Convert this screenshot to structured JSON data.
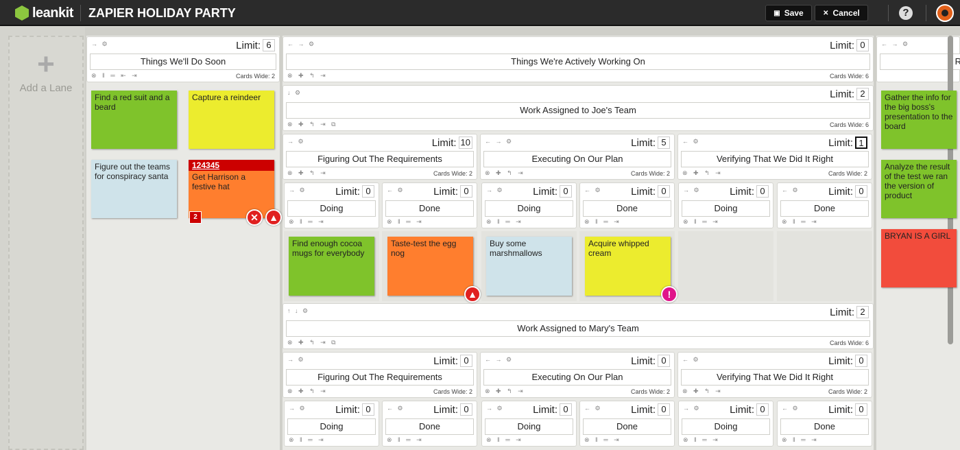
{
  "topbar": {
    "brand": "leankit",
    "board_title": "ZAPIER HOLIDAY PARTY",
    "save_label": "Save",
    "cancel_label": "Cancel",
    "help": "?"
  },
  "sidebar": {
    "add_lane_plus": "+",
    "add_lane_label": "Add a Lane"
  },
  "lanes": {
    "soon": {
      "title": "Things We'll Do Soon",
      "limit_label": "Limit:",
      "limit": "6",
      "cards_wide": "Cards Wide: 2"
    },
    "active": {
      "title": "Things We're Actively Working On",
      "limit_label": "Limit:",
      "limit": "0",
      "cards_wide": "Cards Wide: 6"
    },
    "joe": {
      "title": "Work Assigned to Joe's Team",
      "limit_label": "Limit:",
      "limit": "2",
      "cards_wide": "Cards Wide: 6"
    },
    "joe_req": {
      "title": "Figuring Out The Requirements",
      "limit_label": "Limit:",
      "limit": "10",
      "cards_wide": "Cards Wide: 2"
    },
    "joe_exec": {
      "title": "Executing On Our Plan",
      "limit_label": "Limit:",
      "limit": "5",
      "cards_wide": "Cards Wide: 2"
    },
    "joe_verify": {
      "title": "Verifying That We Did It Right",
      "limit_label": "Limit:",
      "limit": "1",
      "cards_wide": "Cards Wide: 2"
    },
    "mary": {
      "title": "Work Assigned to Mary's Team",
      "limit_label": "Limit:",
      "limit": "2",
      "cards_wide": "Cards Wide: 6"
    },
    "mary_req": {
      "title": "Figuring Out The Requirements",
      "limit_label": "Limit:",
      "limit": "0",
      "cards_wide": "Cards Wide: 2"
    },
    "mary_exec": {
      "title": "Executing On Our Plan",
      "limit_label": "Limit:",
      "limit": "0",
      "cards_wide": "Cards Wide: 2"
    },
    "mary_verify": {
      "title": "Verifying That We Did It Right",
      "limit_label": "Limit:",
      "limit": "0",
      "cards_wide": "Cards Wide: 2"
    },
    "done_partial": {
      "title": "R",
      "limit_label": "",
      "limit": "",
      "cards_wide": ""
    },
    "joe_sub": [
      {
        "title": "Doing",
        "limit_label": "Limit:",
        "limit": "0"
      },
      {
        "title": "Done",
        "limit_label": "Limit:",
        "limit": "0"
      },
      {
        "title": "Doing",
        "limit_label": "Limit:",
        "limit": "0"
      },
      {
        "title": "Done",
        "limit_label": "Limit:",
        "limit": "0"
      },
      {
        "title": "Doing",
        "limit_label": "Limit:",
        "limit": "0"
      },
      {
        "title": "Done",
        "limit_label": "Limit:",
        "limit": "0"
      }
    ],
    "mary_sub": [
      {
        "title": "Doing",
        "limit_label": "Limit:",
        "limit": "0"
      },
      {
        "title": "Done",
        "limit_label": "Limit:",
        "limit": "0"
      },
      {
        "title": "Doing",
        "limit_label": "Limit:",
        "limit": "0"
      },
      {
        "title": "Done",
        "limit_label": "Limit:",
        "limit": "0"
      },
      {
        "title": "Doing",
        "limit_label": "Limit:",
        "limit": "0"
      },
      {
        "title": "Done",
        "limit_label": "Limit:",
        "limit": "0"
      }
    ]
  },
  "cards": {
    "red_suit": "Find a red suit and a beard",
    "reindeer": "Capture a reindeer",
    "teams": "Figure out the teams for conspiracy santa",
    "hat_id": "124345",
    "hat": "Get Harrison a festive hat",
    "hat_badge": "2",
    "cocoa": "Find enough cocoa mugs for everybody",
    "eggnog": "Taste-test the egg nog",
    "marshmallows": "Buy some marshmallows",
    "cream": "Acquire whipped cream",
    "gather": "Gather the info for the big boss's presentation to the board",
    "analyze": "Analyze the result of the test we ran the version of product",
    "bryan": "BRYAN IS A GIRL"
  },
  "colors": {
    "green": "#7fc32b",
    "yellow": "#ecec2e",
    "blue": "#cfe3ea",
    "orange": "#ff7e2e",
    "red": "#f24c3c"
  }
}
